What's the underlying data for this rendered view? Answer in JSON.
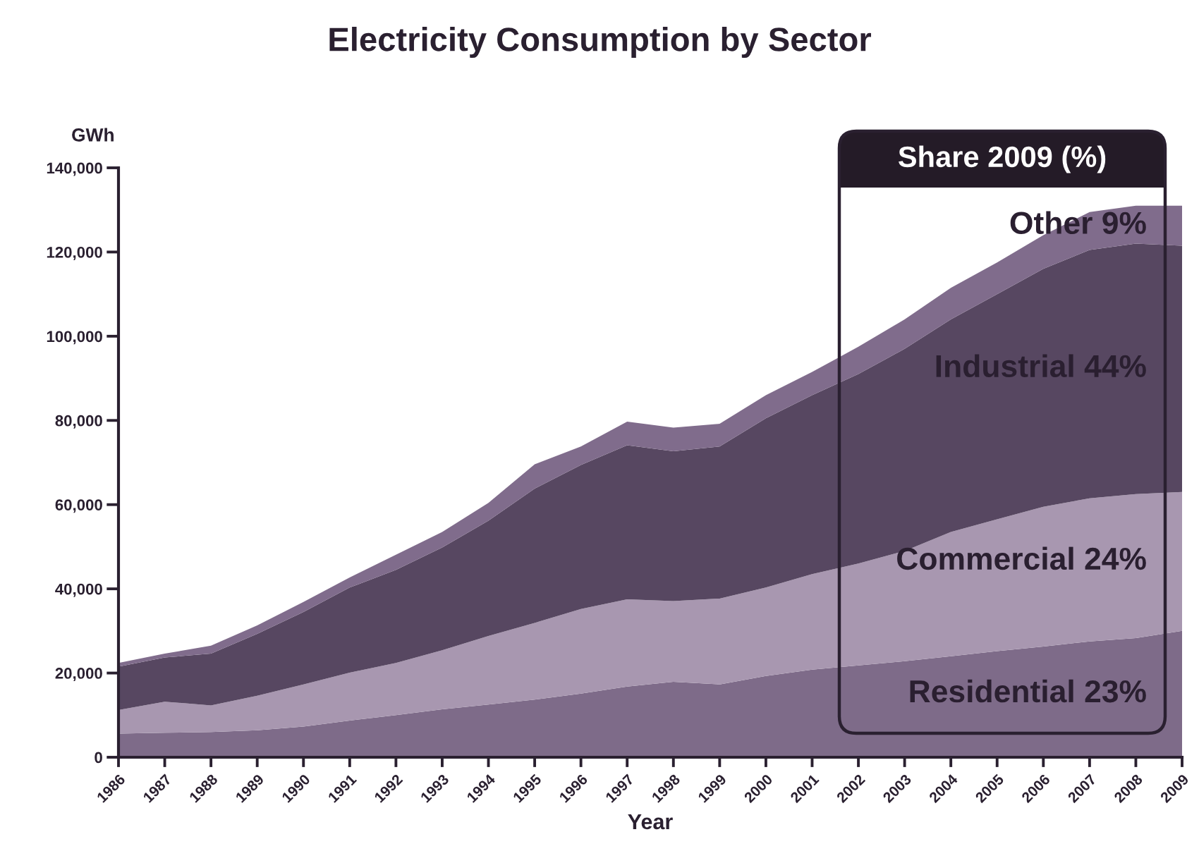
{
  "chart_data": {
    "type": "area",
    "title": "Electricity Consumption by Sector",
    "xlabel": "Year",
    "ylabel": "GWh",
    "annotations": [
      "Share 2009 (%)"
    ],
    "x": [
      1986,
      1987,
      1988,
      1989,
      1990,
      1991,
      1992,
      1993,
      1994,
      1995,
      1996,
      1997,
      1998,
      1999,
      2000,
      2001,
      2002,
      2003,
      2004,
      2005,
      2006,
      2007,
      2008,
      2009
    ],
    "stacked": true,
    "series": [
      {
        "name": "Residential 23%",
        "color": "#7e6b89",
        "values": [
          5600,
          5800,
          6000,
          6400,
          7300,
          8700,
          10000,
          11400,
          12500,
          13700,
          15100,
          16800,
          17900,
          17300,
          19300,
          20800,
          21800,
          22800,
          24000,
          25200,
          26300,
          27500,
          28300,
          30000
        ]
      },
      {
        "name": "Commercial 24%",
        "color": "#a897b0",
        "values": [
          5600,
          7400,
          6300,
          8200,
          10000,
          11400,
          12400,
          14000,
          16300,
          18200,
          20100,
          20700,
          19200,
          20400,
          21000,
          22700,
          24200,
          26200,
          29500,
          31300,
          33200,
          34000,
          34200,
          33000
        ]
      },
      {
        "name": "Industrial 44%",
        "color": "#574761",
        "values": [
          10300,
          10500,
          12300,
          14700,
          17200,
          20200,
          22100,
          24400,
          27400,
          31900,
          34200,
          36600,
          35600,
          36100,
          40200,
          42500,
          45000,
          48000,
          50500,
          53500,
          56500,
          59000,
          59500,
          58500
        ]
      },
      {
        "name": "Other 9%",
        "color": "#806c8c",
        "values": [
          900,
          900,
          1900,
          2000,
          2400,
          2400,
          3600,
          3700,
          4200,
          5800,
          4400,
          5600,
          5600,
          5400,
          5500,
          5500,
          6500,
          7000,
          7500,
          7500,
          8000,
          9000,
          9000,
          9500
        ]
      }
    ],
    "xlim": [
      1986,
      2009
    ],
    "xticks": [
      1986,
      1987,
      1988,
      1989,
      1990,
      1991,
      1992,
      1993,
      1994,
      1995,
      1996,
      1997,
      1998,
      1999,
      2000,
      2001,
      2002,
      2003,
      2004,
      2005,
      2006,
      2007,
      2008,
      2009
    ],
    "ylim": [
      0,
      140000
    ],
    "yticks": [
      0,
      {
        "value": 20000,
        "label": "20,000"
      },
      {
        "value": 40000,
        "label": "40,000"
      },
      {
        "value": 60000,
        "label": "60,000"
      },
      {
        "value": 80000,
        "label": "80,000"
      },
      {
        "value": 100000,
        "label": "100,000"
      },
      {
        "value": 120000,
        "label": "120,000"
      },
      {
        "value": 140000,
        "label": "140,000"
      }
    ],
    "grid": false,
    "legend": false
  }
}
